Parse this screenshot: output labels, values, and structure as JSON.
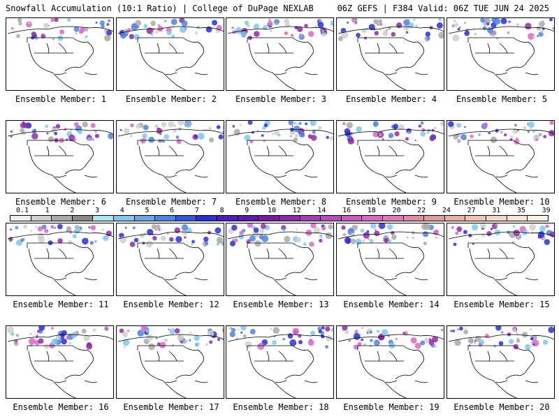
{
  "header": {
    "left": "Snowfall Accumulation (10:1 Ratio) | College of DuPage NEXLAB",
    "right": "06Z GEFS | F384 Valid: 06Z TUE JUN 24 2025"
  },
  "panels": [
    {
      "label": "Ensemble Member: 1"
    },
    {
      "label": "Ensemble Member: 2"
    },
    {
      "label": "Ensemble Member: 3"
    },
    {
      "label": "Ensemble Member: 4"
    },
    {
      "label": "Ensemble Member: 5"
    },
    {
      "label": "Ensemble Member: 6"
    },
    {
      "label": "Ensemble Member: 7"
    },
    {
      "label": "Ensemble Member: 8"
    },
    {
      "label": "Ensemble Member: 9"
    },
    {
      "label": "Ensemble Member: 10"
    },
    {
      "label": "Ensemble Member: 11"
    },
    {
      "label": "Ensemble Member: 12"
    },
    {
      "label": "Ensemble Member: 13"
    },
    {
      "label": "Ensemble Member: 14"
    },
    {
      "label": "Ensemble Member: 15"
    },
    {
      "label": "Ensemble Member: 16"
    },
    {
      "label": "Ensemble Member: 17"
    },
    {
      "label": "Ensemble Member: 18"
    },
    {
      "label": "Ensemble Member: 19"
    },
    {
      "label": "Ensemble Member: 20"
    }
  ],
  "colorbar": {
    "labels": [
      "0.1",
      "1",
      "2",
      "3",
      "4",
      "5",
      "6",
      "7",
      "8",
      "9",
      "10",
      "12",
      "14",
      "16",
      "18",
      "20",
      "22",
      "24",
      "27",
      "31",
      "35",
      "39"
    ],
    "colors": [
      "#eeeeee",
      "#cfcfcf",
      "#a9a9a9",
      "#8a8a8a",
      "#a8e6f0",
      "#7ec8ec",
      "#6aa6e8",
      "#4f82e0",
      "#3557d8",
      "#2b2fd0",
      "#4a1ec0",
      "#5e1aa8",
      "#7a1a9e",
      "#8e2aa8",
      "#a43cb4",
      "#b84cbc",
      "#c85cc4",
      "#d868c4",
      "#e07ab8",
      "#e08aa4",
      "#e09c98",
      "#e8b0a0",
      "#f0c4b0",
      "#f4d6c4",
      "#f8e4d4",
      "#fcf0e6"
    ]
  }
}
